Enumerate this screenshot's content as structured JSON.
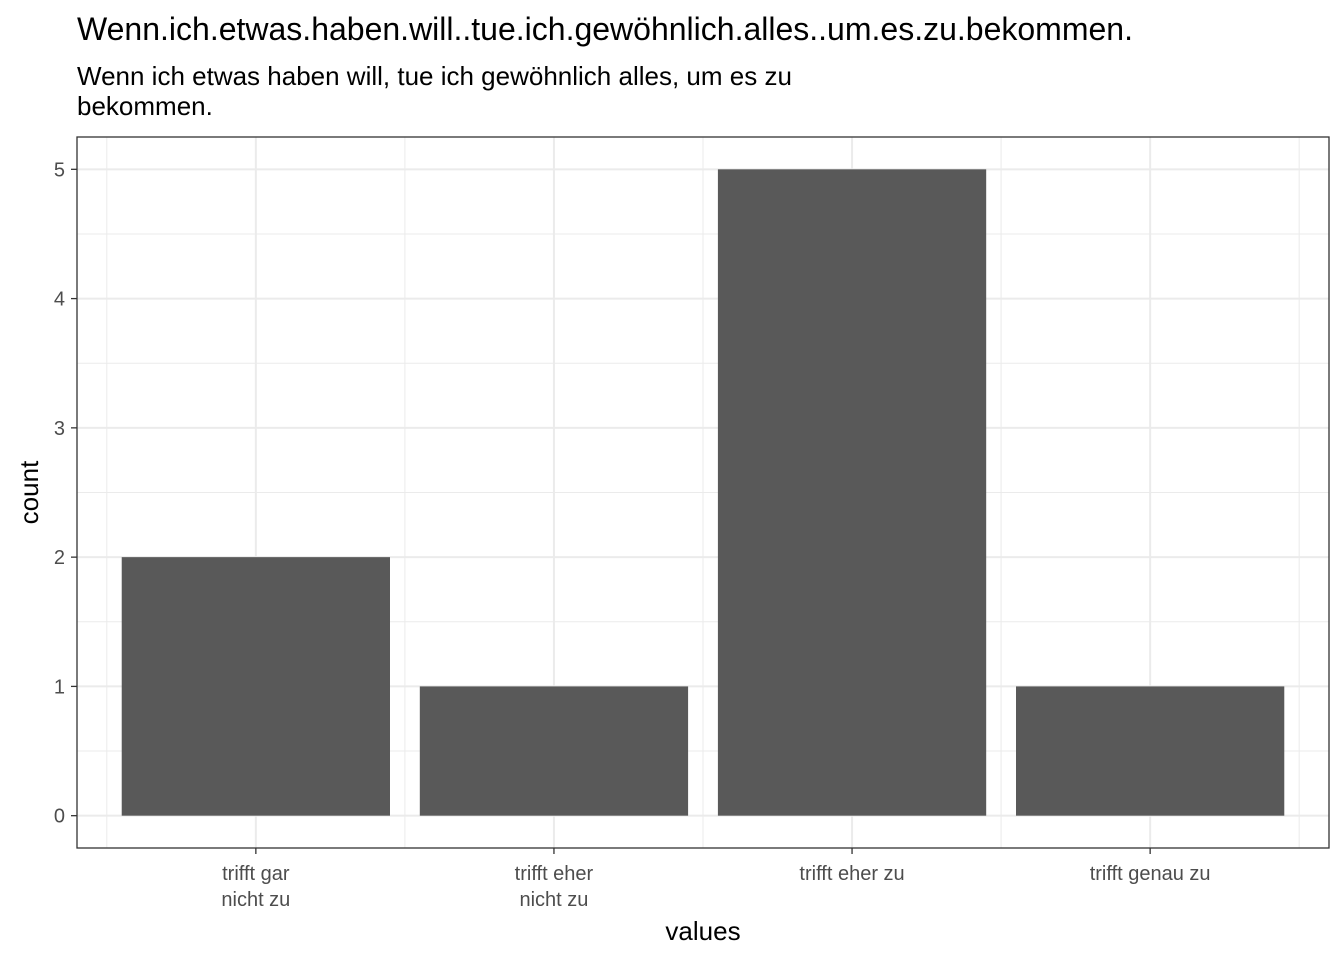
{
  "chart_data": {
    "type": "bar",
    "title": "Wenn.ich.etwas.haben.will..tue.ich.gewöhnlich.alles..um.es.zu.bekommen.",
    "subtitle": "Wenn ich etwas haben will, tue ich gewöhnlich alles, um es zu bekommen.",
    "xlabel": "values",
    "ylabel": "count",
    "categories": [
      [
        "trifft gar",
        "nicht zu"
      ],
      [
        "trifft eher",
        "nicht zu"
      ],
      [
        "trifft eher zu"
      ],
      [
        "trifft genau zu"
      ]
    ],
    "values": [
      2,
      1,
      5,
      1
    ],
    "yticks": [
      "0",
      "1",
      "2",
      "3",
      "4",
      "5"
    ],
    "ylim": [
      -0.25,
      5.25
    ],
    "grid": true,
    "bar_color": "#595959",
    "grid_color": "#ebebeb",
    "panel_border_color": "#333333"
  }
}
